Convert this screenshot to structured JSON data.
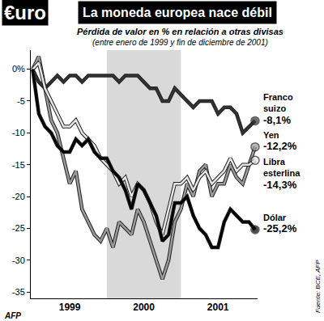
{
  "chart_data": {
    "type": "line",
    "title": "La moneda europea nace débil",
    "subtitle": [
      "Pérdida de valor en % en relación a otras divisas",
      "(entre enero de 1999 y fin de diciembre de 2001)"
    ],
    "annotations": [
      {
        "text": "€uro"
      },
      {
        "text": "Fuente: BCE, AFP"
      },
      {
        "text": "AFP"
      }
    ],
    "categories": [
      null,
      null,
      null,
      null,
      null,
      null,
      "1999",
      null,
      null,
      null,
      null,
      null,
      null,
      null,
      null,
      null,
      null,
      null,
      "2000",
      null,
      null,
      null,
      null,
      null,
      null,
      null,
      null,
      null,
      null,
      null,
      "2001",
      null,
      null,
      null,
      null,
      null,
      null
    ],
    "series": [
      {
        "name": "Franco suizo",
        "color": "#333333",
        "values": [
          0,
          -2,
          -3,
          -2,
          -1,
          -2,
          -1,
          -1,
          -2,
          -1,
          -1,
          -1,
          -1,
          -1,
          -2,
          -1,
          -1,
          -1,
          -2,
          -3,
          -3,
          -5,
          -5,
          -3,
          -4,
          -5,
          -6,
          -5,
          -5,
          -5,
          -7,
          -6,
          -6,
          -7,
          -10,
          -9,
          -8.1
        ],
        "value_labels": [
          null,
          null,
          null,
          null,
          null,
          null,
          null,
          null,
          null,
          null,
          null,
          null,
          null,
          null,
          null,
          null,
          null,
          null,
          null,
          null,
          null,
          null,
          null,
          null,
          null,
          null,
          null,
          null,
          null,
          null,
          null,
          null,
          null,
          null,
          null,
          null,
          "-8,1%"
        ]
      },
      {
        "name": "Yen",
        "color": "#9a9a9a",
        "values": [
          0,
          2,
          -3,
          -8,
          -10,
          -14,
          -18,
          -16,
          -22,
          -24,
          -26,
          -27,
          -25,
          -28,
          -24,
          -25,
          -26,
          -22,
          -24,
          -27,
          -30,
          -33,
          -30,
          -24,
          -22,
          -18,
          -20,
          -16,
          -15,
          -20,
          -18,
          -18,
          -15,
          -17,
          -18,
          -15,
          -12.2
        ],
        "value_labels": [
          null,
          null,
          null,
          null,
          null,
          null,
          null,
          null,
          null,
          null,
          null,
          null,
          null,
          null,
          null,
          null,
          null,
          null,
          null,
          null,
          null,
          null,
          null,
          null,
          null,
          null,
          null,
          null,
          null,
          null,
          null,
          null,
          null,
          null,
          null,
          null,
          "-12,2%"
        ]
      },
      {
        "name": "Libra esterlina",
        "color": "#e6e6e6",
        "values": [
          0,
          1,
          -3,
          -5,
          -7,
          -9,
          -9,
          -8,
          -10,
          -11,
          -12,
          -14,
          -15,
          -16,
          -18,
          -17,
          -20,
          -18,
          -19,
          -21,
          -24,
          -26,
          -22,
          -18,
          -18,
          -17,
          -19,
          -17,
          -16,
          -18,
          -17,
          -16,
          -14,
          -16,
          -15,
          -15,
          -14.3
        ],
        "value_labels": [
          null,
          null,
          null,
          null,
          null,
          null,
          null,
          null,
          null,
          null,
          null,
          null,
          null,
          null,
          null,
          null,
          null,
          null,
          null,
          null,
          null,
          null,
          null,
          null,
          null,
          null,
          null,
          null,
          null,
          null,
          null,
          null,
          null,
          null,
          null,
          null,
          "-14,3%"
        ]
      },
      {
        "name": "Dólar",
        "color": "#000000",
        "values": [
          0,
          -7,
          -9,
          -10,
          -12,
          -13,
          -13,
          -11,
          -12,
          -11,
          -13,
          -14,
          -14,
          -16,
          -17,
          -19,
          -22,
          -18,
          -19,
          -21,
          -23,
          -27,
          -26,
          -21,
          -21,
          -20,
          -23,
          -25,
          -26,
          -28,
          -28,
          -24,
          -22,
          -23,
          -24,
          -24,
          -25.2
        ],
        "value_labels": [
          null,
          null,
          null,
          null,
          null,
          null,
          null,
          null,
          null,
          null,
          null,
          null,
          null,
          null,
          null,
          null,
          null,
          null,
          null,
          null,
          null,
          null,
          null,
          null,
          null,
          null,
          null,
          null,
          null,
          null,
          null,
          null,
          null,
          null,
          null,
          null,
          "-25,2%"
        ]
      }
    ],
    "ylim": [
      -36,
      3
    ],
    "yticks": [
      {
        "value": 0,
        "label": "0%"
      },
      -5,
      -10,
      -15,
      -20,
      -25,
      -30,
      -35
    ],
    "grid": false,
    "marker": "circle"
  }
}
